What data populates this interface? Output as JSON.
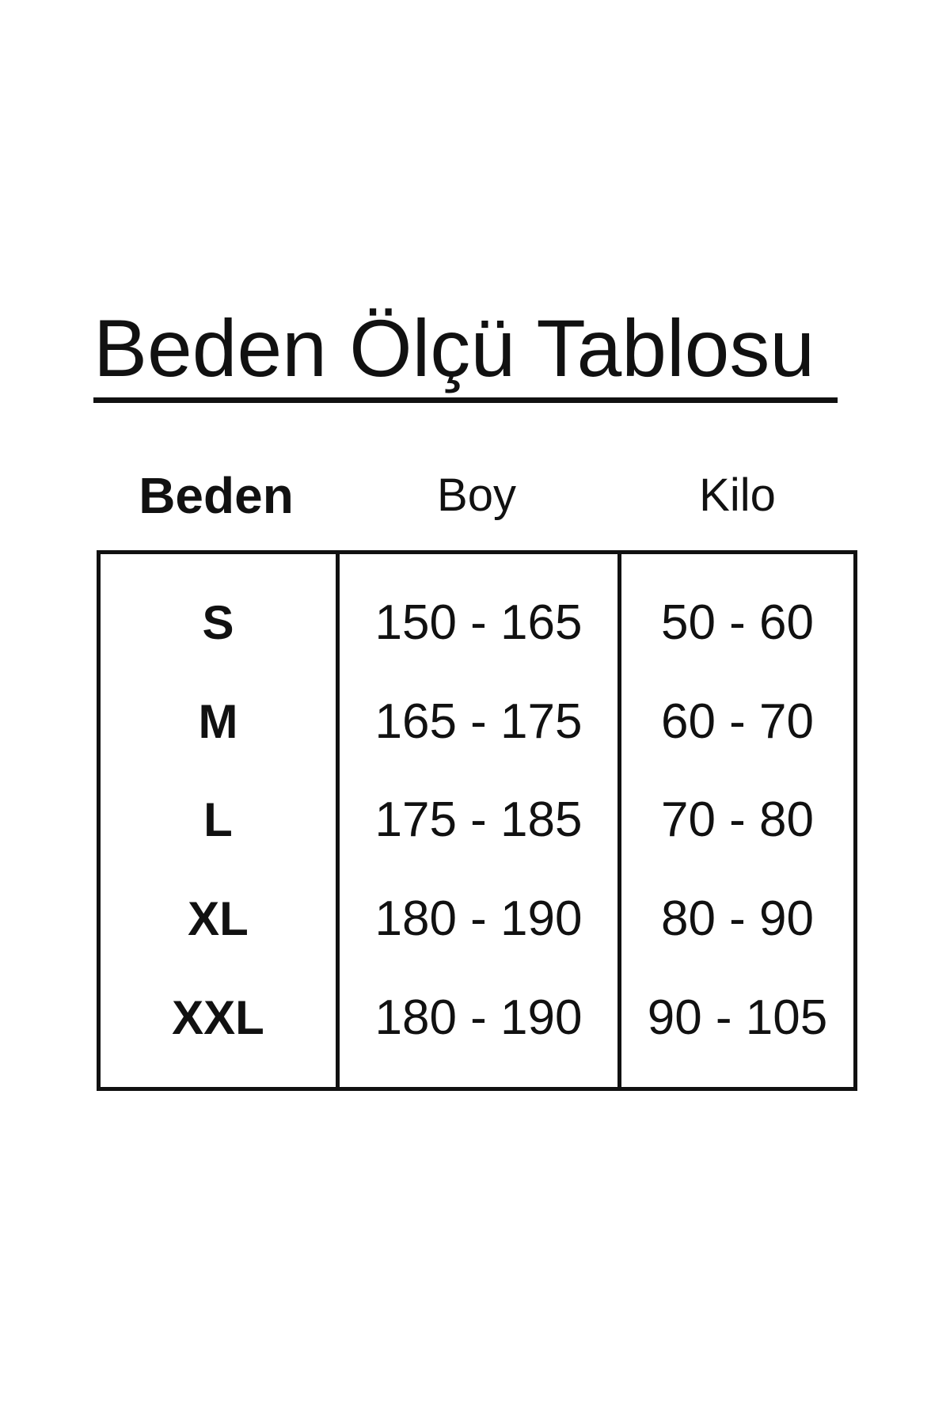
{
  "chart_data": {
    "type": "table",
    "title": "Beden Ölçü Tablosu",
    "columns": [
      "Beden",
      "Boy",
      "Kilo"
    ],
    "rows": [
      [
        "S",
        "150 - 165",
        "50 - 60"
      ],
      [
        "M",
        "165 - 175",
        "60 - 70"
      ],
      [
        "L",
        "175 - 185",
        "70 - 80"
      ],
      [
        "XL",
        "180 - 190",
        "80 - 90"
      ],
      [
        "XXL",
        "180 - 190",
        "90 - 105"
      ]
    ],
    "layout_hints": {
      "header_outside_box": true,
      "grid": "outer-border-and-column-dividers-only",
      "first_column_bold": true,
      "title_underlined": true
    }
  },
  "colors": {
    "background": "#ffffff",
    "text": "#111111",
    "border": "#111111"
  }
}
